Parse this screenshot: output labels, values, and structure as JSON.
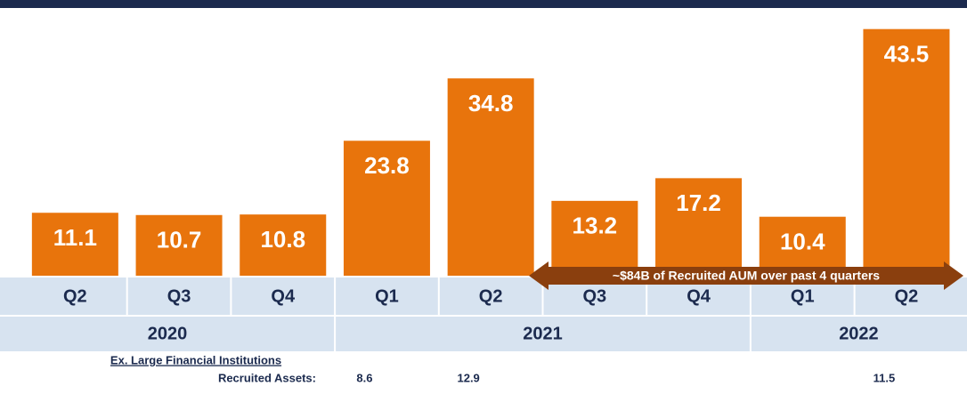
{
  "chart_data": {
    "type": "bar",
    "groups": [
      {
        "name": "2020",
        "categories": [
          "Q2",
          "Q3",
          "Q4"
        ]
      },
      {
        "name": "2021",
        "categories": [
          "Q1",
          "Q2",
          "Q3",
          "Q4"
        ]
      },
      {
        "name": "2022",
        "categories": [
          "Q1",
          "Q2"
        ]
      }
    ],
    "values": [
      11.1,
      10.7,
      10.8,
      23.8,
      34.8,
      13.2,
      17.2,
      10.4,
      43.5
    ],
    "color": "#e8740c",
    "ylim": [
      0,
      48
    ],
    "annotation": "~$84B of Recruited AUM over past 4 quarters",
    "footnote": {
      "title": "Ex. Large Financial Institutions",
      "label": "Recruited Assets:",
      "values": [
        null,
        null,
        null,
        8.6,
        12.9,
        null,
        null,
        null,
        11.5
      ]
    }
  }
}
